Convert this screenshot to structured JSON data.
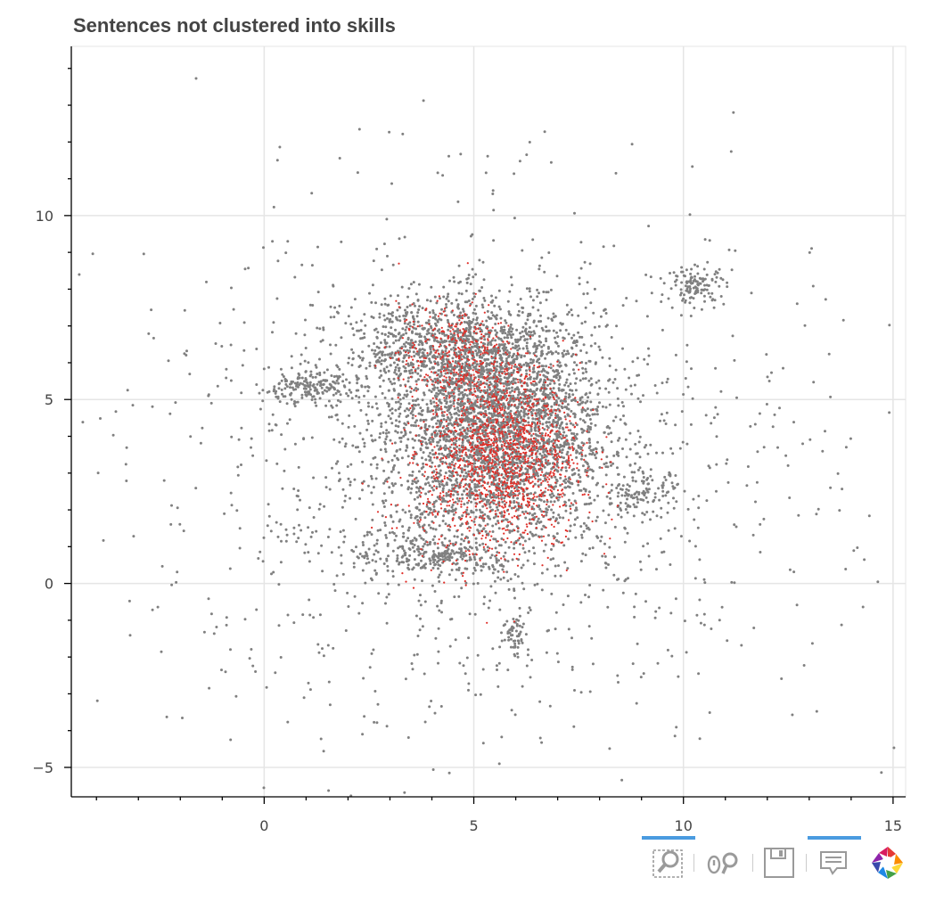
{
  "chart_data": {
    "type": "scatter",
    "title": "Sentences not clustered into skills",
    "xlabel": "",
    "ylabel": "",
    "xlim": [
      -4.6,
      15.3
    ],
    "ylim": [
      -5.8,
      14.6
    ],
    "x_ticks": [
      0,
      5,
      10,
      15
    ],
    "y_ticks": [
      -5,
      0,
      5,
      10
    ],
    "x_tick_labels": [
      "0",
      "5",
      "10",
      "15"
    ],
    "y_tick_labels": [
      "−5",
      "0",
      "5",
      "10"
    ],
    "grid": true,
    "legend": "none",
    "series": [
      {
        "color": "#808080",
        "approx_points": 6000,
        "clusters": [
          {
            "cx": 5.5,
            "cy": 4.2,
            "sx": 1.3,
            "sy": 1.6,
            "w": 0.55
          },
          {
            "cx": 4.3,
            "cy": 6.4,
            "sx": 1.2,
            "sy": 0.7,
            "w": 0.12
          },
          {
            "cx": 1.0,
            "cy": 5.3,
            "sx": 0.6,
            "sy": 0.2,
            "w": 0.03
          },
          {
            "cx": 10.3,
            "cy": 8.1,
            "sx": 0.35,
            "sy": 0.25,
            "w": 0.02
          },
          {
            "cx": 6.0,
            "cy": -1.4,
            "sx": 0.15,
            "sy": 0.3,
            "w": 0.01
          },
          {
            "cx": 4.0,
            "cy": 0.8,
            "sx": 1.0,
            "sy": 0.3,
            "w": 0.04
          },
          {
            "cx": 9.0,
            "cy": 2.4,
            "sx": 0.5,
            "sy": 0.3,
            "w": 0.02
          },
          {
            "cx": 5.0,
            "cy": 3.0,
            "sx": 4.2,
            "sy": 3.6,
            "w": 0.21
          }
        ]
      },
      {
        "color": "#e0302a",
        "approx_points": 1800,
        "clusters": [
          {
            "cx": 5.7,
            "cy": 3.6,
            "sx": 0.9,
            "sy": 1.1,
            "w": 0.7
          },
          {
            "cx": 4.6,
            "cy": 6.2,
            "sx": 0.7,
            "sy": 0.7,
            "w": 0.2
          },
          {
            "cx": 5.2,
            "cy": 2.0,
            "sx": 1.2,
            "sy": 1.0,
            "w": 0.1
          }
        ]
      }
    ]
  },
  "toolbar": {
    "tools": [
      {
        "icon": "box-zoom-icon",
        "active": true
      },
      {
        "icon": "wheel-zoom-icon",
        "active": false
      },
      {
        "icon": "save-icon",
        "active": false
      },
      {
        "icon": "hover-icon",
        "active": true
      },
      {
        "icon": "bokeh-logo-icon",
        "active": false
      }
    ]
  }
}
